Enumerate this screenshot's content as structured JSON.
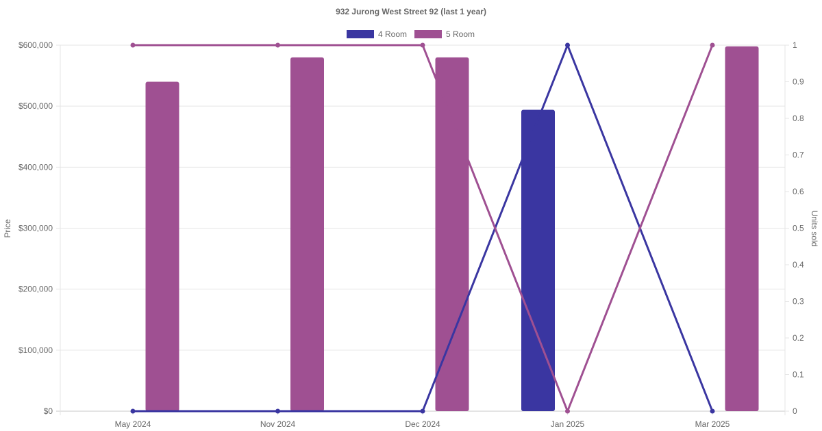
{
  "chart_data": {
    "type": "bar",
    "title": "932 Jurong West Street 92 (last 1 year)",
    "categories": [
      "May 2024",
      "Nov 2024",
      "Dec 2024",
      "Jan 2025",
      "Mar 2025"
    ],
    "y_left": {
      "label": "Price",
      "ticks": [
        "$0",
        "$100,000",
        "$200,000",
        "$300,000",
        "$400,000",
        "$500,000",
        "$600,000"
      ],
      "range": [
        0,
        600000
      ]
    },
    "y_right": {
      "label": "Units sold",
      "ticks": [
        "0",
        "0.1",
        "0.2",
        "0.3",
        "0.4",
        "0.5",
        "0.6",
        "0.7",
        "0.8",
        "0.9",
        "1"
      ],
      "range": [
        0,
        1
      ]
    },
    "legend": {
      "position": "top"
    },
    "grid": true,
    "series": [
      {
        "name": "4 Room",
        "color": "#3a36a1",
        "price": [
          null,
          null,
          null,
          494000,
          null
        ],
        "units_sold": [
          0,
          0,
          0,
          1,
          0
        ]
      },
      {
        "name": "5 Room",
        "color": "#9f5092",
        "price": [
          540000,
          580000,
          580000,
          null,
          598000
        ],
        "units_sold": [
          1,
          1,
          1,
          0,
          1
        ]
      }
    ]
  }
}
